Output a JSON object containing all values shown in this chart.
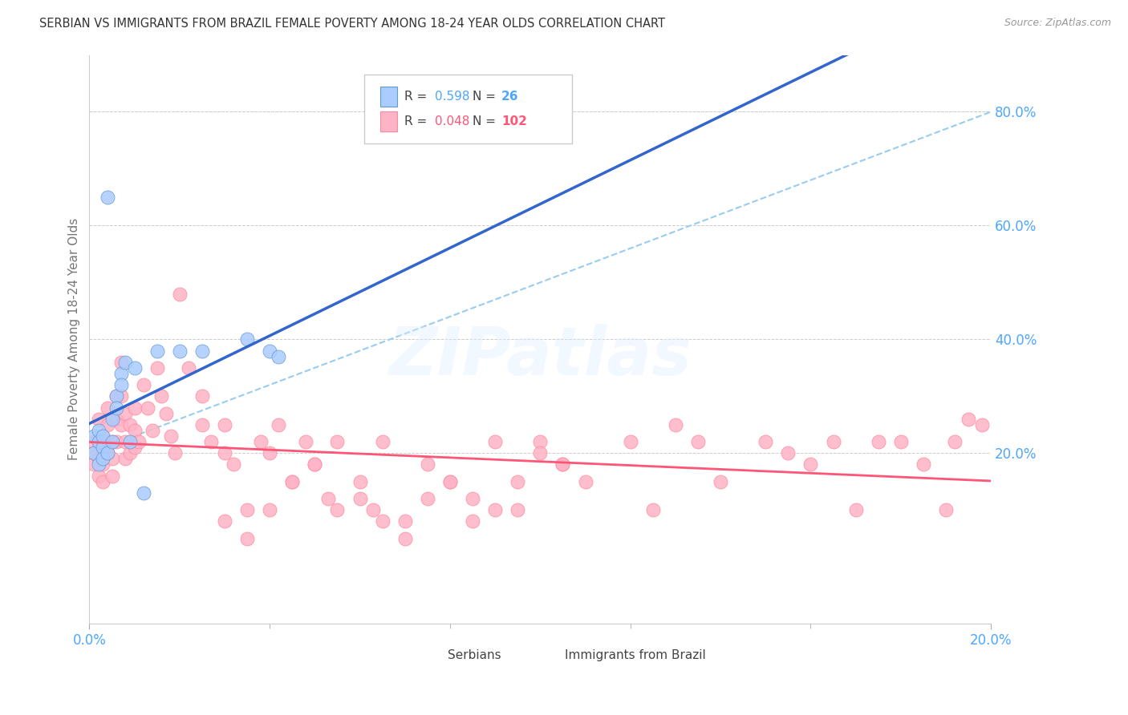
{
  "title": "SERBIAN VS IMMIGRANTS FROM BRAZIL FEMALE POVERTY AMONG 18-24 YEAR OLDS CORRELATION CHART",
  "source": "Source: ZipAtlas.com",
  "ylabel": "Female Poverty Among 18-24 Year Olds",
  "xlim": [
    0.0,
    0.2
  ],
  "ylim": [
    -0.1,
    0.9
  ],
  "yticks_right": [
    0.2,
    0.4,
    0.6,
    0.8
  ],
  "ytick_labels_right": [
    "20.0%",
    "40.0%",
    "60.0%",
    "80.0%"
  ],
  "xtick_left_label": "0.0%",
  "xtick_right_label": "20.0%",
  "background_color": "#ffffff",
  "grid_color": "#cccccc",
  "title_color": "#333333",
  "axis_label_color": "#777777",
  "tick_color": "#4da6ff",
  "serbian_color": "#aaccff",
  "brazil_color": "#ffb3c6",
  "serbian_edge": "#6699cc",
  "brazil_edge": "#ff8899",
  "serbian_line_color": "#3366cc",
  "brazil_line_color": "#ff5577",
  "ref_line_color": "#99ccee",
  "watermark": "ZIPatlas",
  "legend_serbian_R": "0.598",
  "legend_serbian_N": "26",
  "legend_brazil_R": "0.048",
  "legend_brazil_N": "102",
  "serbian_x": [
    0.001,
    0.001,
    0.002,
    0.002,
    0.002,
    0.003,
    0.003,
    0.003,
    0.004,
    0.004,
    0.005,
    0.005,
    0.006,
    0.006,
    0.007,
    0.007,
    0.008,
    0.009,
    0.01,
    0.012,
    0.015,
    0.02,
    0.025,
    0.035,
    0.04,
    0.042
  ],
  "serbian_y": [
    0.23,
    0.2,
    0.24,
    0.22,
    0.18,
    0.21,
    0.19,
    0.23,
    0.65,
    0.2,
    0.26,
    0.22,
    0.3,
    0.28,
    0.34,
    0.32,
    0.36,
    0.22,
    0.35,
    0.13,
    0.38,
    0.38,
    0.38,
    0.4,
    0.38,
    0.37
  ],
  "brazil_x": [
    0.001,
    0.001,
    0.001,
    0.002,
    0.002,
    0.002,
    0.002,
    0.003,
    0.003,
    0.003,
    0.003,
    0.004,
    0.004,
    0.004,
    0.005,
    0.005,
    0.005,
    0.006,
    0.006,
    0.006,
    0.007,
    0.007,
    0.007,
    0.008,
    0.008,
    0.008,
    0.009,
    0.009,
    0.01,
    0.01,
    0.01,
    0.011,
    0.012,
    0.013,
    0.014,
    0.015,
    0.016,
    0.017,
    0.018,
    0.019,
    0.02,
    0.022,
    0.025,
    0.025,
    0.027,
    0.03,
    0.03,
    0.032,
    0.035,
    0.038,
    0.04,
    0.042,
    0.045,
    0.048,
    0.05,
    0.053,
    0.055,
    0.06,
    0.063,
    0.065,
    0.07,
    0.075,
    0.08,
    0.085,
    0.09,
    0.095,
    0.1,
    0.105,
    0.11,
    0.12,
    0.125,
    0.13,
    0.135,
    0.14,
    0.15,
    0.155,
    0.16,
    0.165,
    0.17,
    0.175,
    0.18,
    0.185,
    0.19,
    0.192,
    0.195,
    0.198,
    0.03,
    0.035,
    0.04,
    0.045,
    0.05,
    0.055,
    0.06,
    0.065,
    0.07,
    0.075,
    0.08,
    0.085,
    0.09,
    0.095,
    0.1,
    0.105
  ],
  "brazil_y": [
    0.22,
    0.2,
    0.18,
    0.26,
    0.22,
    0.19,
    0.16,
    0.23,
    0.21,
    0.18,
    0.15,
    0.28,
    0.25,
    0.2,
    0.22,
    0.19,
    0.16,
    0.3,
    0.26,
    0.22,
    0.36,
    0.3,
    0.25,
    0.22,
    0.19,
    0.27,
    0.25,
    0.2,
    0.28,
    0.24,
    0.21,
    0.22,
    0.32,
    0.28,
    0.24,
    0.35,
    0.3,
    0.27,
    0.23,
    0.2,
    0.48,
    0.35,
    0.3,
    0.25,
    0.22,
    0.2,
    0.25,
    0.18,
    0.1,
    0.22,
    0.2,
    0.25,
    0.15,
    0.22,
    0.18,
    0.12,
    0.22,
    0.15,
    0.1,
    0.22,
    0.08,
    0.18,
    0.15,
    0.12,
    0.22,
    0.1,
    0.22,
    0.18,
    0.15,
    0.22,
    0.1,
    0.25,
    0.22,
    0.15,
    0.22,
    0.2,
    0.18,
    0.22,
    0.1,
    0.22,
    0.22,
    0.18,
    0.1,
    0.22,
    0.26,
    0.25,
    0.08,
    0.05,
    0.1,
    0.15,
    0.18,
    0.1,
    0.12,
    0.08,
    0.05,
    0.12,
    0.15,
    0.08,
    0.1,
    0.15,
    0.2,
    0.18
  ]
}
